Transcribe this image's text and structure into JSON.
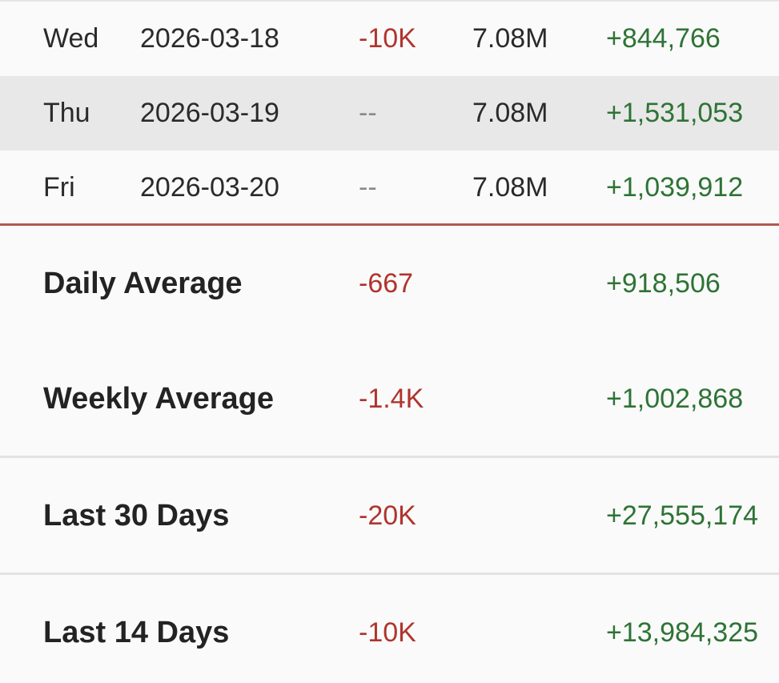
{
  "daily_rows": [
    {
      "day": "Wed",
      "date": "2026-03-18",
      "change": "-10K",
      "total": "7.08M",
      "views": "+844,766"
    },
    {
      "day": "Thu",
      "date": "2026-03-19",
      "change": "--",
      "total": "7.08M",
      "views": "+1,531,053"
    },
    {
      "day": "Fri",
      "date": "2026-03-20",
      "change": "--",
      "total": "7.08M",
      "views": "+1,039,912"
    }
  ],
  "summary_rows": [
    {
      "label": "Daily Average",
      "change": "-667",
      "views": "+918,506"
    },
    {
      "label": "Weekly Average",
      "change": "-1.4K",
      "views": "+1,002,868"
    },
    {
      "label": "Last 30 Days",
      "change": "-20K",
      "views": "+27,555,174"
    },
    {
      "label": "Last 14 Days",
      "change": "-10K",
      "views": "+13,984,325"
    }
  ],
  "colors": {
    "negative": "#b0342d",
    "positive": "#2e7335",
    "placeholder": "#8a8a8a",
    "shaded_row": "#e8e8e8",
    "separator": "#b05a50"
  }
}
